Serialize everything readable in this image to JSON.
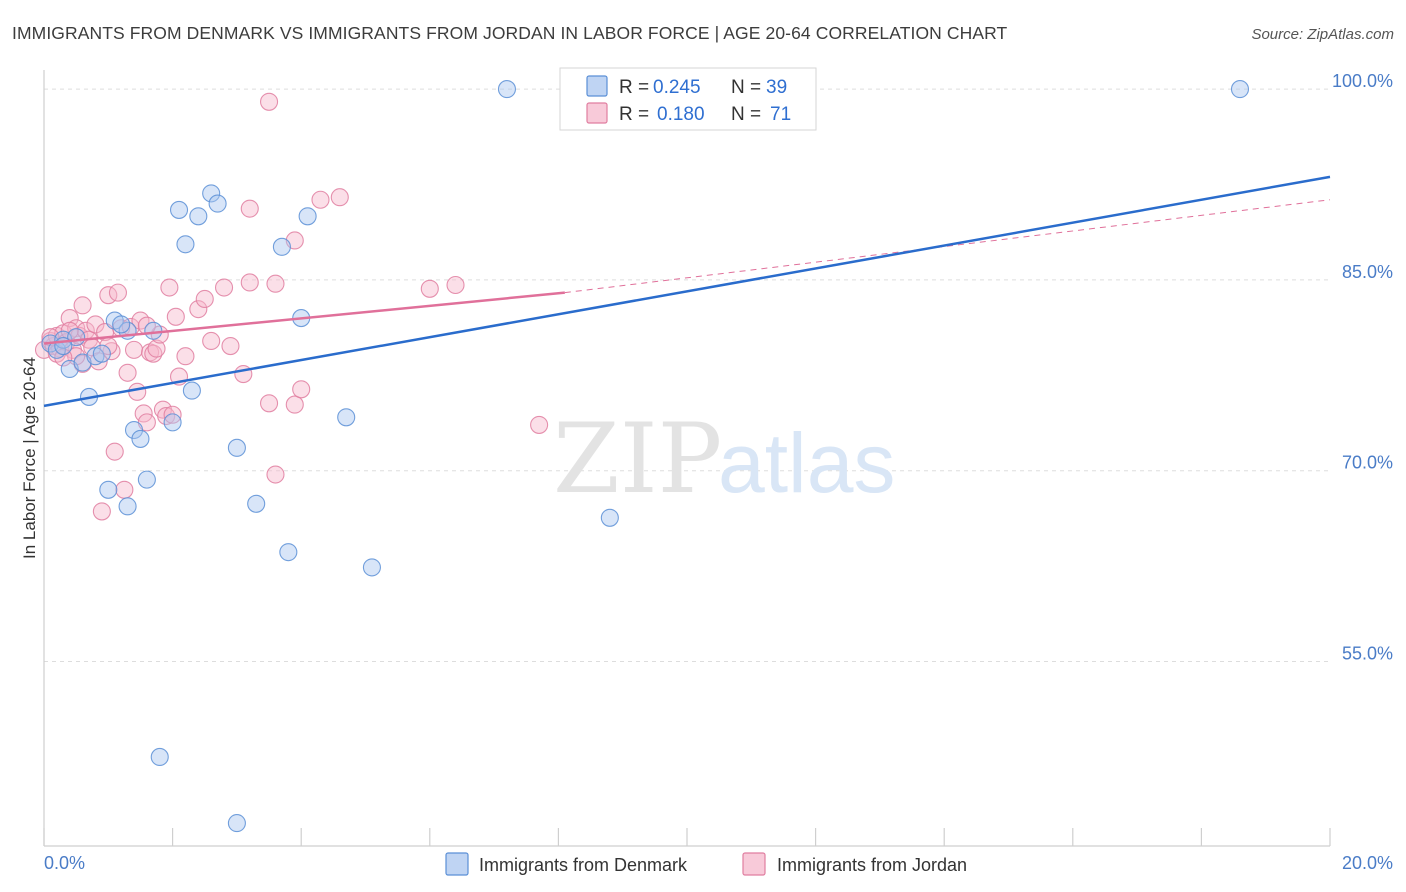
{
  "title": "IMMIGRANTS FROM DENMARK VS IMMIGRANTS FROM JORDAN IN LABOR FORCE | AGE 20-64 CORRELATION CHART",
  "source": "Source: ZipAtlas.com",
  "watermark": {
    "zip": "ZIP",
    "atlas": "atlas"
  },
  "colors": {
    "denmark_fill": "#a9c6ef",
    "denmark_stroke": "#5b8fd6",
    "denmark_line": "#2a6ccc",
    "jordan_fill": "#f6b8cc",
    "jordan_stroke": "#e07ea0",
    "jordan_line": "#e0709a",
    "grid": "#dddddd",
    "tick_text": "#4a7cc7"
  },
  "legend": {
    "rows": [
      {
        "r_label": "R =",
        "r_value": "0.245",
        "n_label": "N =",
        "n_value": "39"
      },
      {
        "r_label": "R =",
        "r_value": "0.180",
        "n_label": "N =",
        "n_value": "71"
      }
    ]
  },
  "chart_data": {
    "type": "scatter",
    "title": "IMMIGRANTS FROM DENMARK VS IMMIGRANTS FROM JORDAN IN LABOR FORCE | AGE 20-64 CORRELATION CHART",
    "xlabel": "",
    "ylabel": "In Labor Force | Age 20-64",
    "xlim": [
      0,
      20
    ],
    "ylim": [
      40.5,
      101.5
    ],
    "x_tick_labels": [
      "0.0%",
      "20.0%"
    ],
    "y_ticks": [
      55,
      70,
      85,
      100
    ],
    "y_tick_labels": [
      "55.0%",
      "70.0%",
      "85.0%",
      "100.0%"
    ],
    "grid": true,
    "legend_position": "bottom",
    "series": [
      {
        "name": "Immigrants from Denmark",
        "R": 0.245,
        "N": 39,
        "trend": {
          "x0": 0,
          "y0": 75.1,
          "x1": 20,
          "y1": 93.1
        },
        "points": [
          [
            0.1,
            80.0
          ],
          [
            0.2,
            79.5
          ],
          [
            0.3,
            80.3
          ],
          [
            0.4,
            78.0
          ],
          [
            0.5,
            80.5
          ],
          [
            0.6,
            78.5
          ],
          [
            0.7,
            75.8
          ],
          [
            0.8,
            79.0
          ],
          [
            1.0,
            68.5
          ],
          [
            1.1,
            81.8
          ],
          [
            1.3,
            81.0
          ],
          [
            1.3,
            67.2
          ],
          [
            1.4,
            73.2
          ],
          [
            1.5,
            72.5
          ],
          [
            1.6,
            69.3
          ],
          [
            1.7,
            81.0
          ],
          [
            1.8,
            47.5
          ],
          [
            2.0,
            73.8
          ],
          [
            2.1,
            90.5
          ],
          [
            2.2,
            87.8
          ],
          [
            2.3,
            76.3
          ],
          [
            2.4,
            90.0
          ],
          [
            2.6,
            91.8
          ],
          [
            2.7,
            91.0
          ],
          [
            3.0,
            71.8
          ],
          [
            3.0,
            42.3
          ],
          [
            3.3,
            67.4
          ],
          [
            3.7,
            87.6
          ],
          [
            3.8,
            63.6
          ],
          [
            4.0,
            82.0
          ],
          [
            4.1,
            90.0
          ],
          [
            4.7,
            74.2
          ],
          [
            5.1,
            62.4
          ],
          [
            7.2,
            100.0
          ],
          [
            8.8,
            66.3
          ],
          [
            18.6,
            100.0
          ],
          [
            0.3,
            79.8
          ],
          [
            0.9,
            79.2
          ],
          [
            1.2,
            81.5
          ]
        ]
      },
      {
        "name": "Immigrants from Jordan",
        "R": 0.18,
        "N": 71,
        "trend": {
          "x0": 0,
          "y0": 80.0,
          "x1": 8.1,
          "y1": 84.0
        },
        "trend_ext": {
          "x0": 8.1,
          "y0": 84.0,
          "x1": 20,
          "y1": 91.3
        },
        "points": [
          [
            0.0,
            79.5
          ],
          [
            0.1,
            80.2
          ],
          [
            0.15,
            79.8
          ],
          [
            0.2,
            80.6
          ],
          [
            0.25,
            79.6
          ],
          [
            0.3,
            80.8
          ],
          [
            0.35,
            80.1
          ],
          [
            0.4,
            82.0
          ],
          [
            0.45,
            79.5
          ],
          [
            0.5,
            81.2
          ],
          [
            0.55,
            80.6
          ],
          [
            0.6,
            78.4
          ],
          [
            0.65,
            81.0
          ],
          [
            0.7,
            80.3
          ],
          [
            0.75,
            79.7
          ],
          [
            0.8,
            81.5
          ],
          [
            0.85,
            78.6
          ],
          [
            0.9,
            66.8
          ],
          [
            0.95,
            80.9
          ],
          [
            1.0,
            83.8
          ],
          [
            1.05,
            79.4
          ],
          [
            1.1,
            71.5
          ],
          [
            1.15,
            84.0
          ],
          [
            1.2,
            81.2
          ],
          [
            1.25,
            68.5
          ],
          [
            1.3,
            77.7
          ],
          [
            1.35,
            81.3
          ],
          [
            1.4,
            79.5
          ],
          [
            1.45,
            76.2
          ],
          [
            1.5,
            81.8
          ],
          [
            1.55,
            74.5
          ],
          [
            1.6,
            73.8
          ],
          [
            1.65,
            79.3
          ],
          [
            1.7,
            79.2
          ],
          [
            1.75,
            79.6
          ],
          [
            1.8,
            80.7
          ],
          [
            1.85,
            74.8
          ],
          [
            1.9,
            74.3
          ],
          [
            1.95,
            84.4
          ],
          [
            2.0,
            74.4
          ],
          [
            2.05,
            82.1
          ],
          [
            2.1,
            77.4
          ],
          [
            2.2,
            79.0
          ],
          [
            2.4,
            82.7
          ],
          [
            2.5,
            83.5
          ],
          [
            2.6,
            80.2
          ],
          [
            2.8,
            84.4
          ],
          [
            2.9,
            79.8
          ],
          [
            3.1,
            77.6
          ],
          [
            3.2,
            90.6
          ],
          [
            3.2,
            84.8
          ],
          [
            3.5,
            99.0
          ],
          [
            3.5,
            75.3
          ],
          [
            3.6,
            84.7
          ],
          [
            3.6,
            69.7
          ],
          [
            3.9,
            88.1
          ],
          [
            3.9,
            75.2
          ],
          [
            4.0,
            76.4
          ],
          [
            4.3,
            91.3
          ],
          [
            4.6,
            91.5
          ],
          [
            6.0,
            84.3
          ],
          [
            6.4,
            84.6
          ],
          [
            7.7,
            73.6
          ],
          [
            0.1,
            80.5
          ],
          [
            0.2,
            79.2
          ],
          [
            1.6,
            81.4
          ],
          [
            0.6,
            83.0
          ],
          [
            0.5,
            79.0
          ],
          [
            1.0,
            79.8
          ],
          [
            0.3,
            78.9
          ],
          [
            0.4,
            81.0
          ]
        ]
      }
    ]
  }
}
